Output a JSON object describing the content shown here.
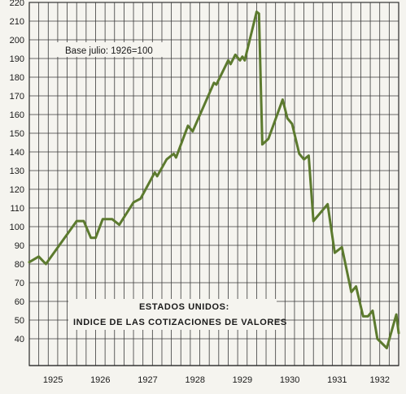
{
  "chart_data": {
    "type": "line",
    "annotation": "Base julio: 1926=100",
    "title_lines": [
      "ESTADOS UNIDOS:",
      "INDICE DE LAS COTIZACIONES DE VALORES"
    ],
    "years": [
      "1925",
      "1926",
      "1927",
      "1928",
      "1929",
      "1930",
      "1931",
      "1932"
    ],
    "yticks": [
      40,
      50,
      60,
      70,
      80,
      90,
      100,
      110,
      120,
      130,
      140,
      150,
      160,
      170,
      180,
      190,
      200,
      210,
      220
    ],
    "ylim": [
      30,
      220
    ],
    "xlim": [
      1925.0,
      1932.8
    ],
    "grid": true,
    "series": [
      {
        "color": "#5c7a2e",
        "points": [
          [
            1925.0,
            81
          ],
          [
            1925.2,
            84
          ],
          [
            1925.35,
            80
          ],
          [
            1926.0,
            103
          ],
          [
            1926.15,
            103
          ],
          [
            1926.3,
            94
          ],
          [
            1926.4,
            94
          ],
          [
            1926.55,
            104
          ],
          [
            1926.75,
            104
          ],
          [
            1926.9,
            101
          ],
          [
            1927.2,
            113
          ],
          [
            1927.35,
            115
          ],
          [
            1927.65,
            129
          ],
          [
            1927.7,
            127
          ],
          [
            1927.9,
            136
          ],
          [
            1928.05,
            139
          ],
          [
            1928.1,
            137
          ],
          [
            1928.35,
            154
          ],
          [
            1928.45,
            151
          ],
          [
            1928.9,
            177
          ],
          [
            1928.95,
            176
          ],
          [
            1929.2,
            189
          ],
          [
            1929.25,
            187
          ],
          [
            1929.35,
            192
          ],
          [
            1929.45,
            189
          ],
          [
            1929.5,
            191
          ],
          [
            1929.55,
            189
          ],
          [
            1929.8,
            215
          ],
          [
            1929.85,
            214
          ],
          [
            1929.92,
            144
          ],
          [
            1930.05,
            147
          ],
          [
            1930.35,
            168
          ],
          [
            1930.45,
            158
          ],
          [
            1930.55,
            155
          ],
          [
            1930.7,
            139
          ],
          [
            1930.8,
            136
          ],
          [
            1930.9,
            138
          ],
          [
            1931.0,
            103
          ],
          [
            1931.3,
            112
          ],
          [
            1931.45,
            86
          ],
          [
            1931.6,
            89
          ],
          [
            1931.8,
            65
          ],
          [
            1931.9,
            68
          ],
          [
            1932.05,
            52
          ],
          [
            1932.15,
            52
          ],
          [
            1932.25,
            55
          ],
          [
            1932.35,
            40
          ],
          [
            1932.55,
            35
          ],
          [
            1932.75,
            53
          ],
          [
            1932.95,
            43
          ]
        ]
      }
    ]
  }
}
